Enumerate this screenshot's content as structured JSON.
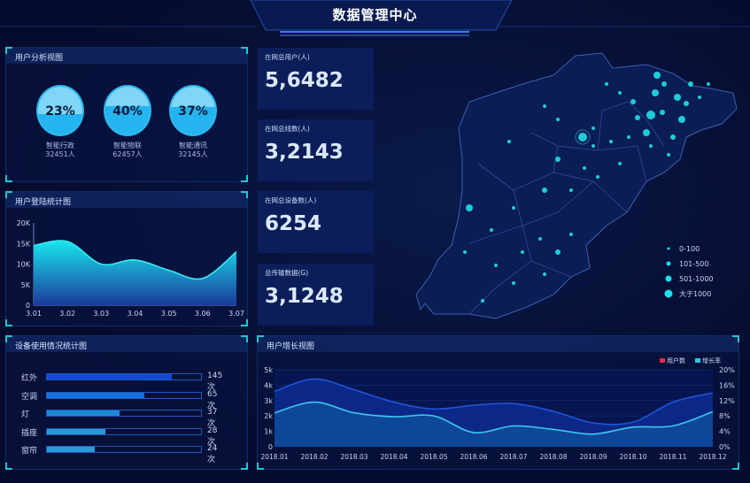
{
  "header": {
    "title": "数据管理中心"
  },
  "user_analysis": {
    "title": "用户分析视图",
    "items": [
      {
        "percent": "23%",
        "fraction": 0.23,
        "name": "智能行政",
        "count": "32451人"
      },
      {
        "percent": "40%",
        "fraction": 0.4,
        "name": "智能物联",
        "count": "62457人"
      },
      {
        "percent": "37%",
        "fraction": 0.37,
        "name": "智能通讯",
        "count": "32145人"
      }
    ]
  },
  "stats": [
    {
      "label": "在网总用户(人)",
      "value": "5,6482"
    },
    {
      "label": "在网总线数(人)",
      "value": "3,2143"
    },
    {
      "label": "在网总设备数(人)",
      "value": "6254"
    },
    {
      "label": "总传输数据(G)",
      "value": "3,1248"
    }
  ],
  "map": {
    "legend": [
      "0-100",
      "101-500",
      "501-1000",
      "大于1000"
    ],
    "dot_color": "#1fe0e8"
  },
  "colors": {
    "accent": "#22c6d6",
    "bar1": "#1249d8",
    "bar2": "#1572dc",
    "bar3": "#1a88d4",
    "bar4": "#2a9ad8",
    "bar5": "#2a9ad8"
  },
  "device_usage": {
    "title": "设备使用情况统计图",
    "items": [
      {
        "name": "红外",
        "value": "145次",
        "fill": 0.81
      },
      {
        "name": "空调",
        "value": "65次",
        "fill": 0.63
      },
      {
        "name": "灯",
        "value": "37次",
        "fill": 0.47
      },
      {
        "name": "插座",
        "value": "28次",
        "fill": 0.38
      },
      {
        "name": "窗帘",
        "value": "24次",
        "fill": 0.31
      }
    ]
  },
  "chart_data": [
    {
      "type": "area",
      "title": "用户登陆统计图",
      "categories": [
        "3.01",
        "3.02",
        "3.03",
        "3.04",
        "3.05",
        "3.06",
        "3.07"
      ],
      "values": [
        14500,
        15500,
        10000,
        11000,
        8500,
        6500,
        13000
      ],
      "ylim": [
        0,
        20000
      ],
      "yticks": [
        "0",
        "5K",
        "10K",
        "15K",
        "20K"
      ]
    },
    {
      "type": "area",
      "title": "用户增长视图",
      "categories": [
        "2018.01",
        "2018.02",
        "2018.03",
        "2018.04",
        "2018.05",
        "2018.06",
        "2018.07",
        "2018.08",
        "2018.09",
        "2018.10",
        "2018.11",
        "2018.12"
      ],
      "series": [
        {
          "name": "用户数",
          "axis": "left",
          "values": [
            3600,
            4400,
            3700,
            2900,
            2450,
            2700,
            2800,
            2300,
            1550,
            1600,
            2900,
            3500
          ],
          "legend_color": "#e0304a"
        },
        {
          "name": "增长率",
          "axis": "right",
          "values": [
            8.8,
            11.6,
            8.8,
            7.8,
            8.0,
            3.7,
            5.4,
            4.5,
            3.3,
            5.1,
            5.4,
            9.1
          ],
          "legend_color": "#2bc8e8"
        }
      ],
      "ylim_left": [
        0,
        5000
      ],
      "ylim_right": [
        0,
        20
      ],
      "yticks_left": [
        "0",
        "1k",
        "2k",
        "3k",
        "4k",
        "5k"
      ],
      "yticks_right": [
        "0%",
        "4%",
        "8%",
        "12%",
        "16%",
        "20%"
      ]
    }
  ]
}
